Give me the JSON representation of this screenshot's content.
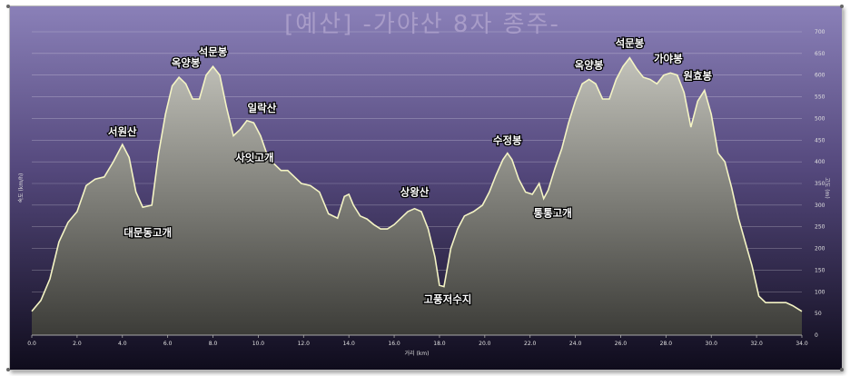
{
  "chart_data": {
    "type": "area",
    "title": "[예산] -가야산 8자 종주-",
    "xlabel": "거리 (km)",
    "ylabel": "속도 (km/h)",
    "ylabel_right": "고도 (m)",
    "xlim": [
      0,
      34
    ],
    "ylim": [
      0,
      700
    ],
    "x_ticks": [
      "0.0",
      "2.0",
      "4.0",
      "6.0",
      "8.0",
      "10.0",
      "12.0",
      "14.0",
      "16.0",
      "18.0",
      "20.0",
      "22.0",
      "24.0",
      "26.0",
      "28.0",
      "30.0",
      "32.0",
      "34.0"
    ],
    "y_ticks": [
      "0",
      "50",
      "100",
      "150",
      "200",
      "250",
      "300",
      "350",
      "400",
      "450",
      "500",
      "550",
      "600",
      "650",
      "700"
    ],
    "grid": true,
    "colors": {
      "bg_top": "#8a80b8",
      "bg_bottom": "#0f0c1c",
      "fill": "#b4b4ac",
      "line": "#f4f4c4",
      "title": "#a89cc8"
    },
    "series": [
      {
        "x": [
          0,
          0.4,
          0.8,
          1.2,
          1.6,
          2.0,
          2.4,
          2.8,
          3.2,
          3.6,
          4.0,
          4.3,
          4.6,
          4.9,
          5.3,
          5.6,
          5.9,
          6.2,
          6.5,
          6.8,
          7.1,
          7.4,
          7.7,
          8.0,
          8.3,
          8.6,
          8.9,
          9.2,
          9.5,
          9.8,
          10.1,
          10.4,
          10.7,
          11.0,
          11.3,
          11.6,
          11.9,
          12.3,
          12.7,
          13.1,
          13.5,
          13.8,
          14.0,
          14.2,
          14.5,
          14.8,
          15.1,
          15.4,
          15.7,
          16.0,
          16.3,
          16.6,
          16.9,
          17.2,
          17.5,
          17.8,
          18.0,
          18.2,
          18.5,
          18.8,
          19.1,
          19.5,
          19.9,
          20.2,
          20.5,
          20.8,
          21.0,
          21.2,
          21.5,
          21.8,
          22.1,
          22.4,
          22.6,
          22.8,
          23.1,
          23.4,
          23.7,
          24.0,
          24.3,
          24.6,
          24.9,
          25.2,
          25.5,
          25.8,
          26.1,
          26.4,
          26.7,
          27.0,
          27.3,
          27.6,
          27.9,
          28.2,
          28.5,
          28.8,
          29.1,
          29.4,
          29.7,
          30.0,
          30.3,
          30.6,
          30.9,
          31.2,
          31.5,
          31.8,
          32.1,
          32.4,
          32.7,
          33.0,
          33.3,
          33.6,
          34.0
        ],
        "y": [
          55,
          80,
          130,
          215,
          260,
          285,
          345,
          360,
          365,
          400,
          440,
          410,
          330,
          295,
          300,
          420,
          510,
          575,
          595,
          580,
          545,
          545,
          600,
          620,
          600,
          525,
          460,
          475,
          495,
          490,
          460,
          415,
          395,
          380,
          380,
          365,
          350,
          345,
          330,
          280,
          270,
          320,
          325,
          300,
          275,
          268,
          255,
          245,
          245,
          255,
          270,
          285,
          292,
          285,
          245,
          180,
          115,
          112,
          200,
          245,
          275,
          285,
          300,
          330,
          370,
          405,
          420,
          405,
          360,
          330,
          325,
          350,
          315,
          335,
          385,
          430,
          490,
          540,
          580,
          590,
          580,
          545,
          545,
          590,
          620,
          640,
          615,
          595,
          590,
          580,
          600,
          605,
          600,
          560,
          480,
          540,
          565,
          510,
          420,
          400,
          340,
          270,
          215,
          160,
          90,
          75,
          75,
          75,
          75,
          68,
          55
        ]
      }
    ],
    "labels": [
      {
        "text": "서원산",
        "x": 4.0,
        "y": 440
      },
      {
        "text": "대문동고개",
        "x": 5.2,
        "y": 295
      },
      {
        "text": "옥양봉",
        "x": 6.8,
        "y": 595
      },
      {
        "text": "석문봉",
        "x": 8.0,
        "y": 620
      },
      {
        "text": "일락산",
        "x": 10.0,
        "y": 495
      },
      {
        "text": "사잇고개",
        "x": 9.2,
        "y": 460
      },
      {
        "text": "상왕산",
        "x": 16.9,
        "y": 292
      },
      {
        "text": "고풍저수지",
        "x": 18.2,
        "y": 112
      },
      {
        "text": "수정봉",
        "x": 21.0,
        "y": 420
      },
      {
        "text": "통통고개",
        "x": 22.6,
        "y": 315
      },
      {
        "text": "옥양봉",
        "x": 24.6,
        "y": 590
      },
      {
        "text": "석문봉",
        "x": 26.4,
        "y": 640
      },
      {
        "text": "가야봉",
        "x": 28.1,
        "y": 605
      },
      {
        "text": "원효봉",
        "x": 29.4,
        "y": 565
      }
    ]
  }
}
